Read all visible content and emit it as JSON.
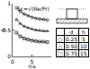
{
  "chart_data": {
    "type": "line",
    "annotation": "Sc=√(Re/Fr)",
    "x_label": "r/a",
    "y_label": "S",
    "x": [
      1,
      2,
      3,
      4,
      5,
      6,
      7,
      8,
      9
    ],
    "series": [
      {
        "color": "#000000",
        "marker": "circle-open",
        "line_style": "solid",
        "values": [
          0.92,
          0.85,
          0.8,
          0.77,
          0.74,
          0.72,
          0.71,
          0.7,
          0.69
        ]
      },
      {
        "color": "#000000",
        "marker": "triangle-up-open",
        "line_style": "solid",
        "values": [
          0.7,
          0.62,
          0.57,
          0.54,
          0.52,
          0.5,
          0.49,
          0.48,
          0.48
        ]
      },
      {
        "color": "#000000",
        "marker": "square-open",
        "line_style": "solid",
        "values": [
          0.45,
          0.38,
          0.34,
          0.32,
          0.3,
          0.29,
          0.28,
          0.28,
          0.27
        ]
      }
    ],
    "xlim": [
      0,
      10
    ],
    "xticks": [
      0,
      5,
      10
    ],
    "ylim": [
      0,
      1
    ],
    "yticks": [
      0,
      0.5,
      1
    ],
    "grid": false
  },
  "table": {
    "header": [
      "",
      "d",
      "h"
    ],
    "rows": [
      [
        "○",
        "0.25",
        "5"
      ],
      [
        "△",
        "0.50",
        "10"
      ],
      [
        "□",
        "0.75",
        "15"
      ]
    ]
  }
}
